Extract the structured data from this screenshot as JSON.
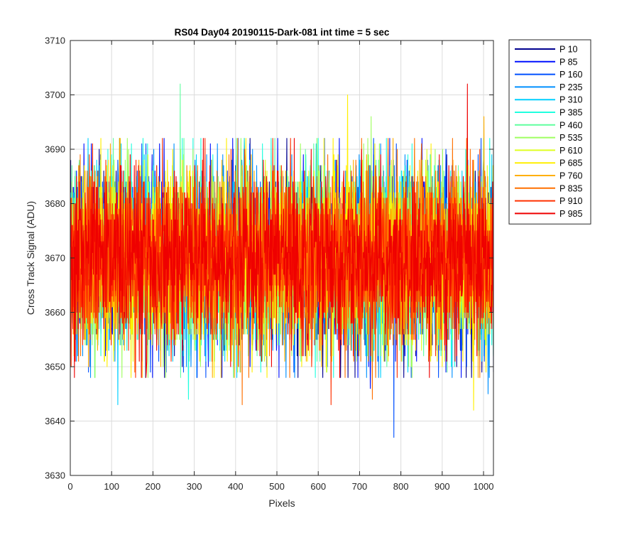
{
  "chart_data": {
    "type": "line",
    "title": "RS04 Day04 20190115-Dark-081 int time = 5 sec",
    "xlabel": "Pixels",
    "ylabel": "Cross Track Signal (ADU)",
    "xlim": [
      0,
      1024
    ],
    "ylim": [
      3630,
      3710
    ],
    "xticks": [
      0,
      100,
      200,
      300,
      400,
      500,
      600,
      700,
      800,
      900,
      1000
    ],
    "yticks": [
      3630,
      3640,
      3650,
      3660,
      3670,
      3680,
      3690,
      3700,
      3710
    ],
    "grid": true,
    "legend_position": "outside-top-right",
    "n_points": 1024,
    "noise_model": {
      "mean": 3670,
      "std": 8
    },
    "series": [
      {
        "name": "P 10",
        "color": "#00008F",
        "mean": 3670,
        "seed": 10
      },
      {
        "name": "P 85",
        "color": "#0010FF",
        "mean": 3670,
        "seed": 85,
        "notable": [
          {
            "x": 725,
            "y": 3646
          },
          {
            "x": 757,
            "y": 3686
          }
        ]
      },
      {
        "name": "P 160",
        "color": "#0050FF",
        "mean": 3670,
        "seed": 160,
        "notable": [
          {
            "x": 782,
            "y": 3637
          }
        ]
      },
      {
        "name": "P 235",
        "color": "#0090FF",
        "mean": 3670,
        "seed": 235,
        "notable": [
          {
            "x": 1010,
            "y": 3645
          }
        ]
      },
      {
        "name": "P 310",
        "color": "#00D0FF",
        "mean": 3670,
        "seed": 310,
        "notable": [
          {
            "x": 114,
            "y": 3643
          }
        ]
      },
      {
        "name": "P 385",
        "color": "#20FFDF",
        "mean": 3670,
        "seed": 385,
        "notable": [
          {
            "x": 285,
            "y": 3644
          }
        ]
      },
      {
        "name": "P 460",
        "color": "#60FF9F",
        "mean": 3670,
        "seed": 460,
        "notable": [
          {
            "x": 265,
            "y": 3702
          }
        ]
      },
      {
        "name": "P 535",
        "color": "#9FFF60",
        "mean": 3670,
        "seed": 535,
        "notable": [
          {
            "x": 727,
            "y": 3696
          }
        ]
      },
      {
        "name": "P 610",
        "color": "#DFFF20",
        "mean": 3670,
        "seed": 610
      },
      {
        "name": "P 685",
        "color": "#FFEF00",
        "mean": 3670,
        "seed": 685,
        "notable": [
          {
            "x": 670,
            "y": 3700
          },
          {
            "x": 975,
            "y": 3642
          }
        ]
      },
      {
        "name": "P 760",
        "color": "#FFAF00",
        "mean": 3670,
        "seed": 760,
        "notable": [
          {
            "x": 1000,
            "y": 3696
          }
        ]
      },
      {
        "name": "P 835",
        "color": "#FF7000",
        "mean": 3670,
        "seed": 835,
        "notable": [
          {
            "x": 415,
            "y": 3643
          },
          {
            "x": 730,
            "y": 3644
          }
        ]
      },
      {
        "name": "P 910",
        "color": "#FF3000",
        "mean": 3670,
        "seed": 910,
        "notable": [
          {
            "x": 630,
            "y": 3643
          }
        ]
      },
      {
        "name": "P 985",
        "color": "#EF0000",
        "mean": 3670,
        "seed": 985,
        "notable": [
          {
            "x": 960,
            "y": 3702
          }
        ]
      }
    ]
  }
}
